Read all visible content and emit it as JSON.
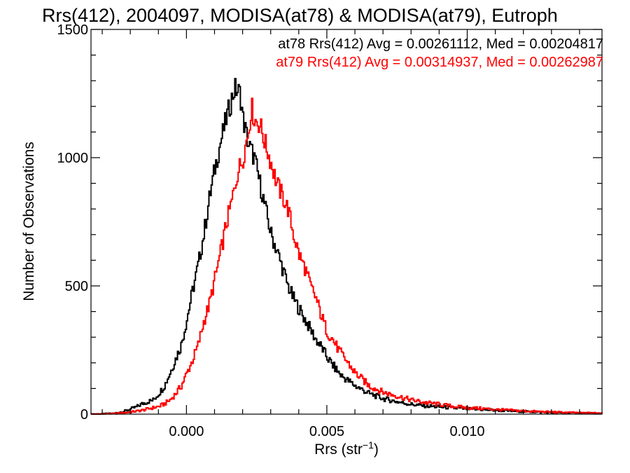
{
  "chart_data": {
    "type": "histogram",
    "title": "Rrs(412), 2004097, MODISA(at78) & MODISA(at79), Eutroph",
    "xlabel": "Rrs (str",
    "xlabel_superscript": "−1",
    "xlabel_suffix": ")",
    "ylabel": "Number of Observations",
    "xlim": [
      -0.0034,
      0.0148
    ],
    "ylim": [
      0,
      1500
    ],
    "xticks": [
      0.0,
      0.005,
      0.01
    ],
    "xtick_labels": [
      "0.000",
      "0.005",
      "0.010"
    ],
    "yticks": [
      0,
      500,
      1000,
      1500
    ],
    "ytick_labels": [
      "0",
      "500",
      "1000",
      "1500"
    ],
    "grid": false,
    "legend_position": "top-right",
    "series": [
      {
        "name": "at78",
        "legend_text": "at78 Rrs(412) Avg = 0.00261112, Med = 0.00204817",
        "color": "#000000",
        "points": [
          [
            -0.0034,
            0
          ],
          [
            -0.0026,
            3
          ],
          [
            -0.0022,
            12
          ],
          [
            -0.002,
            20
          ],
          [
            -0.0018,
            28
          ],
          [
            -0.0016,
            40
          ],
          [
            -0.0014,
            48
          ],
          [
            -0.0012,
            55
          ],
          [
            -0.001,
            80
          ],
          [
            -0.0008,
            110
          ],
          [
            -0.0006,
            160
          ],
          [
            -0.0004,
            215
          ],
          [
            -0.0002,
            270
          ],
          [
            0.0,
            370
          ],
          [
            0.0002,
            480
          ],
          [
            0.0004,
            580
          ],
          [
            0.0006,
            700
          ],
          [
            0.0008,
            840
          ],
          [
            0.001,
            960
          ],
          [
            0.0012,
            1060
          ],
          [
            0.0014,
            1150
          ],
          [
            0.0016,
            1230
          ],
          [
            0.0017,
            1270
          ],
          [
            0.0019,
            1250
          ],
          [
            0.002,
            1150
          ],
          [
            0.0022,
            1050
          ],
          [
            0.0024,
            1000
          ],
          [
            0.0026,
            900
          ],
          [
            0.0028,
            800
          ],
          [
            0.003,
            700
          ],
          [
            0.0032,
            640
          ],
          [
            0.0034,
            570
          ],
          [
            0.0036,
            500
          ],
          [
            0.0038,
            450
          ],
          [
            0.004,
            410
          ],
          [
            0.0042,
            370
          ],
          [
            0.0044,
            330
          ],
          [
            0.0046,
            290
          ],
          [
            0.0048,
            260
          ],
          [
            0.005,
            220
          ],
          [
            0.0052,
            190
          ],
          [
            0.0055,
            150
          ],
          [
            0.006,
            110
          ],
          [
            0.0065,
            80
          ],
          [
            0.007,
            60
          ],
          [
            0.0075,
            48
          ],
          [
            0.008,
            38
          ],
          [
            0.0085,
            32
          ],
          [
            0.009,
            28
          ],
          [
            0.0095,
            24
          ],
          [
            0.01,
            20
          ],
          [
            0.011,
            15
          ],
          [
            0.012,
            10
          ],
          [
            0.013,
            6
          ],
          [
            0.014,
            4
          ],
          [
            0.0148,
            3
          ]
        ]
      },
      {
        "name": "at79",
        "legend_text": "at79 Rrs(412) Avg = 0.00314937, Med = 0.00262987",
        "color": "#ff0000",
        "points": [
          [
            -0.0034,
            0
          ],
          [
            -0.0026,
            2
          ],
          [
            -0.002,
            8
          ],
          [
            -0.0016,
            15
          ],
          [
            -0.0012,
            25
          ],
          [
            -0.001,
            30
          ],
          [
            -0.0008,
            40
          ],
          [
            -0.0006,
            55
          ],
          [
            -0.0004,
            80
          ],
          [
            -0.0002,
            110
          ],
          [
            0.0,
            160
          ],
          [
            0.0002,
            210
          ],
          [
            0.0004,
            270
          ],
          [
            0.0006,
            360
          ],
          [
            0.0008,
            430
          ],
          [
            0.001,
            530
          ],
          [
            0.0012,
            630
          ],
          [
            0.0014,
            740
          ],
          [
            0.0016,
            830
          ],
          [
            0.0018,
            940
          ],
          [
            0.002,
            1000
          ],
          [
            0.0022,
            1110
          ],
          [
            0.0023,
            1200
          ],
          [
            0.0024,
            1150
          ],
          [
            0.0026,
            1130
          ],
          [
            0.0028,
            1050
          ],
          [
            0.003,
            980
          ],
          [
            0.0032,
            900
          ],
          [
            0.0034,
            850
          ],
          [
            0.0036,
            800
          ],
          [
            0.0038,
            700
          ],
          [
            0.004,
            620
          ],
          [
            0.0042,
            570
          ],
          [
            0.0044,
            500
          ],
          [
            0.0046,
            450
          ],
          [
            0.0048,
            380
          ],
          [
            0.005,
            320
          ],
          [
            0.0052,
            290
          ],
          [
            0.0054,
            250
          ],
          [
            0.0056,
            220
          ],
          [
            0.0058,
            190
          ],
          [
            0.006,
            160
          ],
          [
            0.0065,
            110
          ],
          [
            0.007,
            85
          ],
          [
            0.0075,
            70
          ],
          [
            0.008,
            55
          ],
          [
            0.0085,
            45
          ],
          [
            0.009,
            38
          ],
          [
            0.0095,
            30
          ],
          [
            0.01,
            25
          ],
          [
            0.0105,
            22
          ],
          [
            0.011,
            18
          ],
          [
            0.012,
            12
          ],
          [
            0.013,
            8
          ],
          [
            0.014,
            5
          ],
          [
            0.0148,
            4
          ]
        ]
      }
    ]
  }
}
